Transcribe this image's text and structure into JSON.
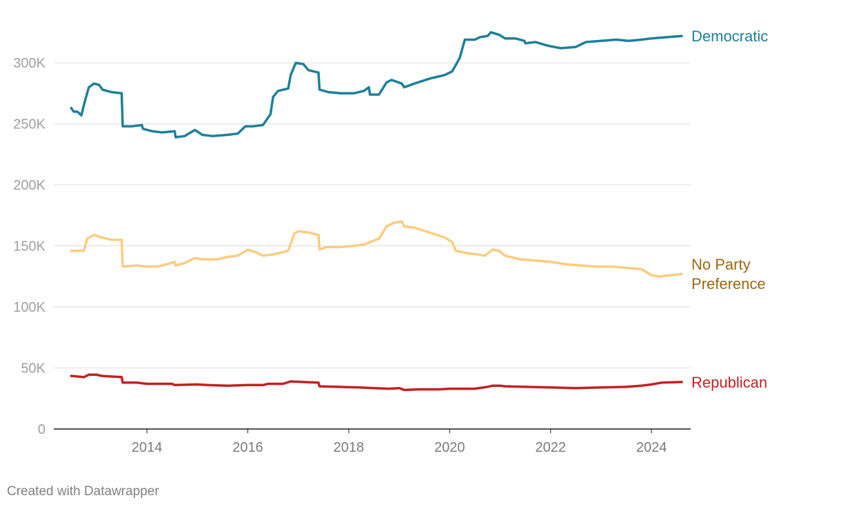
{
  "chart_data": {
    "type": "line",
    "title": "",
    "xlabel": "",
    "ylabel": "",
    "xlim": [
      2012.4,
      2024.75
    ],
    "ylim": [
      0,
      330000
    ],
    "y_ticks": [
      {
        "value": 0,
        "label": "0"
      },
      {
        "value": 50000,
        "label": "50K"
      },
      {
        "value": 100000,
        "label": "100K"
      },
      {
        "value": 150000,
        "label": "150K"
      },
      {
        "value": 200000,
        "label": "200K"
      },
      {
        "value": 250000,
        "label": "250K"
      },
      {
        "value": 300000,
        "label": "300K"
      }
    ],
    "x_ticks": [
      {
        "value": 2014,
        "label": "2014"
      },
      {
        "value": 2016,
        "label": "2016"
      },
      {
        "value": 2018,
        "label": "2018"
      },
      {
        "value": 2020,
        "label": "2020"
      },
      {
        "value": 2022,
        "label": "2022"
      },
      {
        "value": 2024,
        "label": "2024"
      }
    ],
    "grid": true,
    "legend": "inline labels at right end of lines",
    "series": [
      {
        "name": "Democratic",
        "label_lines": [
          "Democratic"
        ],
        "color": "#1d7f9b",
        "label_color": "#1d7f9b",
        "points": [
          [
            2012.5,
            263000
          ],
          [
            2012.55,
            260000
          ],
          [
            2012.62,
            260000
          ],
          [
            2012.7,
            257000
          ],
          [
            2012.78,
            270000
          ],
          [
            2012.85,
            280000
          ],
          [
            2012.95,
            283000
          ],
          [
            2013.05,
            282000
          ],
          [
            2013.12,
            278000
          ],
          [
            2013.3,
            276000
          ],
          [
            2013.5,
            275000
          ],
          [
            2013.52,
            248000
          ],
          [
            2013.7,
            248000
          ],
          [
            2013.9,
            249000
          ],
          [
            2013.92,
            246000
          ],
          [
            2014.1,
            244000
          ],
          [
            2014.3,
            243000
          ],
          [
            2014.55,
            244000
          ],
          [
            2014.57,
            239000
          ],
          [
            2014.75,
            240000
          ],
          [
            2014.95,
            245000
          ],
          [
            2015.1,
            241000
          ],
          [
            2015.3,
            240000
          ],
          [
            2015.6,
            241000
          ],
          [
            2015.8,
            242000
          ],
          [
            2015.95,
            248000
          ],
          [
            2016.1,
            248000
          ],
          [
            2016.3,
            249000
          ],
          [
            2016.45,
            258000
          ],
          [
            2016.5,
            272000
          ],
          [
            2016.6,
            277000
          ],
          [
            2016.8,
            279000
          ],
          [
            2016.85,
            290000
          ],
          [
            2016.95,
            300000
          ],
          [
            2017.1,
            299000
          ],
          [
            2017.2,
            294000
          ],
          [
            2017.4,
            292000
          ],
          [
            2017.42,
            278000
          ],
          [
            2017.6,
            276000
          ],
          [
            2017.85,
            275000
          ],
          [
            2018.1,
            275000
          ],
          [
            2018.3,
            277000
          ],
          [
            2018.4,
            280000
          ],
          [
            2018.42,
            274000
          ],
          [
            2018.6,
            274000
          ],
          [
            2018.75,
            284000
          ],
          [
            2018.85,
            286000
          ],
          [
            2019.05,
            283000
          ],
          [
            2019.1,
            280000
          ],
          [
            2019.3,
            283000
          ],
          [
            2019.6,
            287000
          ],
          [
            2019.9,
            290000
          ],
          [
            2020.05,
            293000
          ],
          [
            2020.2,
            304000
          ],
          [
            2020.3,
            319000
          ],
          [
            2020.5,
            319000
          ],
          [
            2020.6,
            321000
          ],
          [
            2020.75,
            322000
          ],
          [
            2020.82,
            325000
          ],
          [
            2020.98,
            323000
          ],
          [
            2021.1,
            320000
          ],
          [
            2021.3,
            320000
          ],
          [
            2021.48,
            318000
          ],
          [
            2021.5,
            316000
          ],
          [
            2021.7,
            317000
          ],
          [
            2021.95,
            314000
          ],
          [
            2022.2,
            312000
          ],
          [
            2022.5,
            313000
          ],
          [
            2022.7,
            317000
          ],
          [
            2023.0,
            318000
          ],
          [
            2023.3,
            319000
          ],
          [
            2023.55,
            318000
          ],
          [
            2023.8,
            319000
          ],
          [
            2024.0,
            320000
          ],
          [
            2024.3,
            321000
          ],
          [
            2024.6,
            322000
          ]
        ]
      },
      {
        "name": "No Party Preference",
        "label_lines": [
          "No Party",
          "Preference"
        ],
        "color": "#fbcc7f",
        "label_color": "#9a6712",
        "points": [
          [
            2012.5,
            146000
          ],
          [
            2012.75,
            146000
          ],
          [
            2012.82,
            156000
          ],
          [
            2012.95,
            159000
          ],
          [
            2013.1,
            157000
          ],
          [
            2013.3,
            155000
          ],
          [
            2013.5,
            155000
          ],
          [
            2013.52,
            133000
          ],
          [
            2013.8,
            134000
          ],
          [
            2014.0,
            133000
          ],
          [
            2014.2,
            133000
          ],
          [
            2014.4,
            135000
          ],
          [
            2014.55,
            137000
          ],
          [
            2014.57,
            134000
          ],
          [
            2014.75,
            136000
          ],
          [
            2014.95,
            140000
          ],
          [
            2015.1,
            139000
          ],
          [
            2015.4,
            139000
          ],
          [
            2015.6,
            141000
          ],
          [
            2015.8,
            142000
          ],
          [
            2016.0,
            147000
          ],
          [
            2016.15,
            145000
          ],
          [
            2016.3,
            142000
          ],
          [
            2016.5,
            143000
          ],
          [
            2016.7,
            145000
          ],
          [
            2016.8,
            146000
          ],
          [
            2016.92,
            160000
          ],
          [
            2017.0,
            162000
          ],
          [
            2017.2,
            161000
          ],
          [
            2017.4,
            159000
          ],
          [
            2017.42,
            147000
          ],
          [
            2017.55,
            149000
          ],
          [
            2017.8,
            149000
          ],
          [
            2018.1,
            150000
          ],
          [
            2018.3,
            151000
          ],
          [
            2018.42,
            153000
          ],
          [
            2018.6,
            156000
          ],
          [
            2018.75,
            166000
          ],
          [
            2018.9,
            169000
          ],
          [
            2019.05,
            170000
          ],
          [
            2019.1,
            166000
          ],
          [
            2019.3,
            165000
          ],
          [
            2019.6,
            161000
          ],
          [
            2019.9,
            157000
          ],
          [
            2020.05,
            153000
          ],
          [
            2020.12,
            146000
          ],
          [
            2020.35,
            144000
          ],
          [
            2020.55,
            143000
          ],
          [
            2020.7,
            142000
          ],
          [
            2020.85,
            147000
          ],
          [
            2020.98,
            146000
          ],
          [
            2021.1,
            142000
          ],
          [
            2021.4,
            139000
          ],
          [
            2021.7,
            138000
          ],
          [
            2022.0,
            137000
          ],
          [
            2022.3,
            135000
          ],
          [
            2022.6,
            134000
          ],
          [
            2022.9,
            133000
          ],
          [
            2023.2,
            133000
          ],
          [
            2023.5,
            132000
          ],
          [
            2023.8,
            131000
          ],
          [
            2024.0,
            126000
          ],
          [
            2024.15,
            125000
          ],
          [
            2024.4,
            126000
          ],
          [
            2024.6,
            127000
          ]
        ]
      },
      {
        "name": "Republican",
        "label_lines": [
          "Republican"
        ],
        "color": "#c42021",
        "label_color": "#c42021",
        "points": [
          [
            2012.5,
            43500
          ],
          [
            2012.75,
            42500
          ],
          [
            2012.85,
            44500
          ],
          [
            2013.0,
            44500
          ],
          [
            2013.1,
            43500
          ],
          [
            2013.5,
            42500
          ],
          [
            2013.52,
            38000
          ],
          [
            2013.8,
            38000
          ],
          [
            2014.0,
            37000
          ],
          [
            2014.5,
            37000
          ],
          [
            2014.55,
            36000
          ],
          [
            2015.0,
            36500
          ],
          [
            2015.2,
            36000
          ],
          [
            2015.6,
            35500
          ],
          [
            2016.0,
            36000
          ],
          [
            2016.3,
            36000
          ],
          [
            2016.4,
            37000
          ],
          [
            2016.7,
            37000
          ],
          [
            2016.85,
            39000
          ],
          [
            2017.1,
            38500
          ],
          [
            2017.4,
            38000
          ],
          [
            2017.42,
            35000
          ],
          [
            2017.8,
            34500
          ],
          [
            2018.2,
            34000
          ],
          [
            2018.5,
            33500
          ],
          [
            2018.8,
            33000
          ],
          [
            2019.0,
            33500
          ],
          [
            2019.1,
            32000
          ],
          [
            2019.4,
            32500
          ],
          [
            2019.8,
            32500
          ],
          [
            2020.0,
            33000
          ],
          [
            2020.5,
            33000
          ],
          [
            2020.75,
            34500
          ],
          [
            2020.85,
            35500
          ],
          [
            2021.0,
            35500
          ],
          [
            2021.1,
            35000
          ],
          [
            2021.5,
            34500
          ],
          [
            2022.0,
            34000
          ],
          [
            2022.5,
            33500
          ],
          [
            2023.0,
            34000
          ],
          [
            2023.5,
            34500
          ],
          [
            2023.8,
            35500
          ],
          [
            2024.0,
            36500
          ],
          [
            2024.2,
            38000
          ],
          [
            2024.6,
            38500
          ]
        ]
      }
    ]
  },
  "footer": {
    "credit": "Created with Datawrapper"
  }
}
